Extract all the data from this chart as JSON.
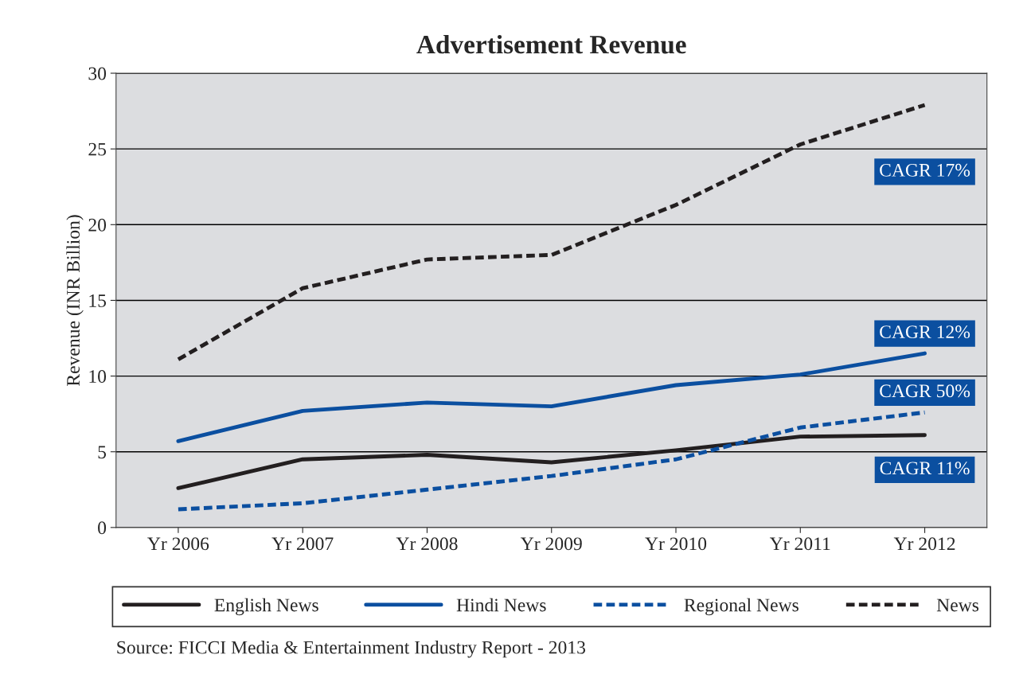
{
  "chart_data": {
    "type": "line",
    "title": "Advertisement Revenue",
    "ylabel": "Revenue (INR Billion)",
    "categories": [
      "Yr 2006",
      "Yr 2007",
      "Yr 2008",
      "Yr 2009",
      "Yr 2010",
      "Yr 2011",
      "Yr 2012"
    ],
    "series": [
      {
        "name": "English News",
        "color": "#231f20",
        "line_style": "solid",
        "values": [
          2.6,
          4.5,
          4.8,
          4.3,
          5.1,
          6.0,
          6.1
        ]
      },
      {
        "name": "Hindi News",
        "color": "#0b4fa0",
        "line_style": "solid",
        "values": [
          5.7,
          7.7,
          8.25,
          8.0,
          9.4,
          10.1,
          11.5
        ]
      },
      {
        "name": "Regional News",
        "color": "#0b4fa0",
        "line_style": "dashed",
        "values": [
          1.2,
          1.6,
          2.5,
          3.4,
          4.5,
          6.6,
          7.6
        ]
      },
      {
        "name": "News",
        "color": "#231f20",
        "line_style": "dashed",
        "values": [
          11.1,
          15.8,
          17.7,
          18.0,
          21.3,
          25.3,
          27.9
        ]
      }
    ],
    "ylim": [
      0,
      30
    ],
    "yticks": [
      0,
      5,
      10,
      15,
      20,
      25,
      30
    ],
    "grid": "y",
    "legend": "bottom",
    "marker": "none",
    "annotations": [
      "CAGR 17%",
      "CAGR 12%",
      "CAGR 50%",
      "CAGR 11%",
      "Source: FICCI Media & Entertainment Industry Report - 2013"
    ]
  }
}
